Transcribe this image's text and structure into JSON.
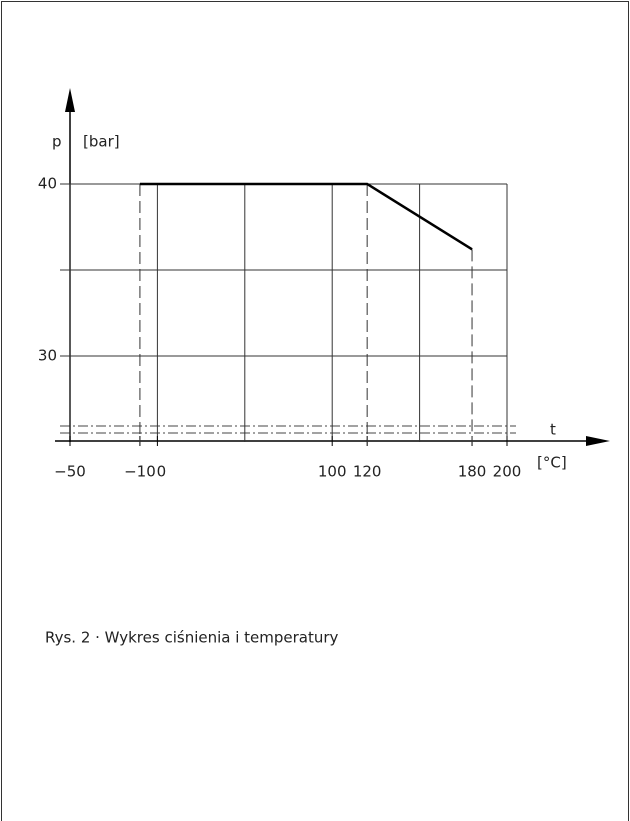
{
  "chart_data": {
    "type": "line",
    "y_label": "p",
    "y_unit": "[bar]",
    "x_label": "t",
    "x_unit": "[°C]",
    "xlim": [
      -50,
      200
    ],
    "ylim": [
      25,
      40
    ],
    "xticks": [
      {
        "value": -50,
        "label": "−50"
      },
      {
        "value": -10,
        "label": "−10"
      },
      0,
      100,
      120,
      180,
      200
    ],
    "yticks": [
      30,
      40
    ],
    "xgrid": [
      -50,
      0,
      50,
      100,
      150,
      200
    ],
    "ygrid": [
      30,
      35,
      40
    ],
    "series": [
      {
        "x": [
          -10,
          120,
          180
        ],
        "values": [
          40,
          40,
          36.2
        ],
        "color": "#000000"
      }
    ],
    "caption": "Rys. 2 · Wykres ciśnienia i temperatury"
  }
}
